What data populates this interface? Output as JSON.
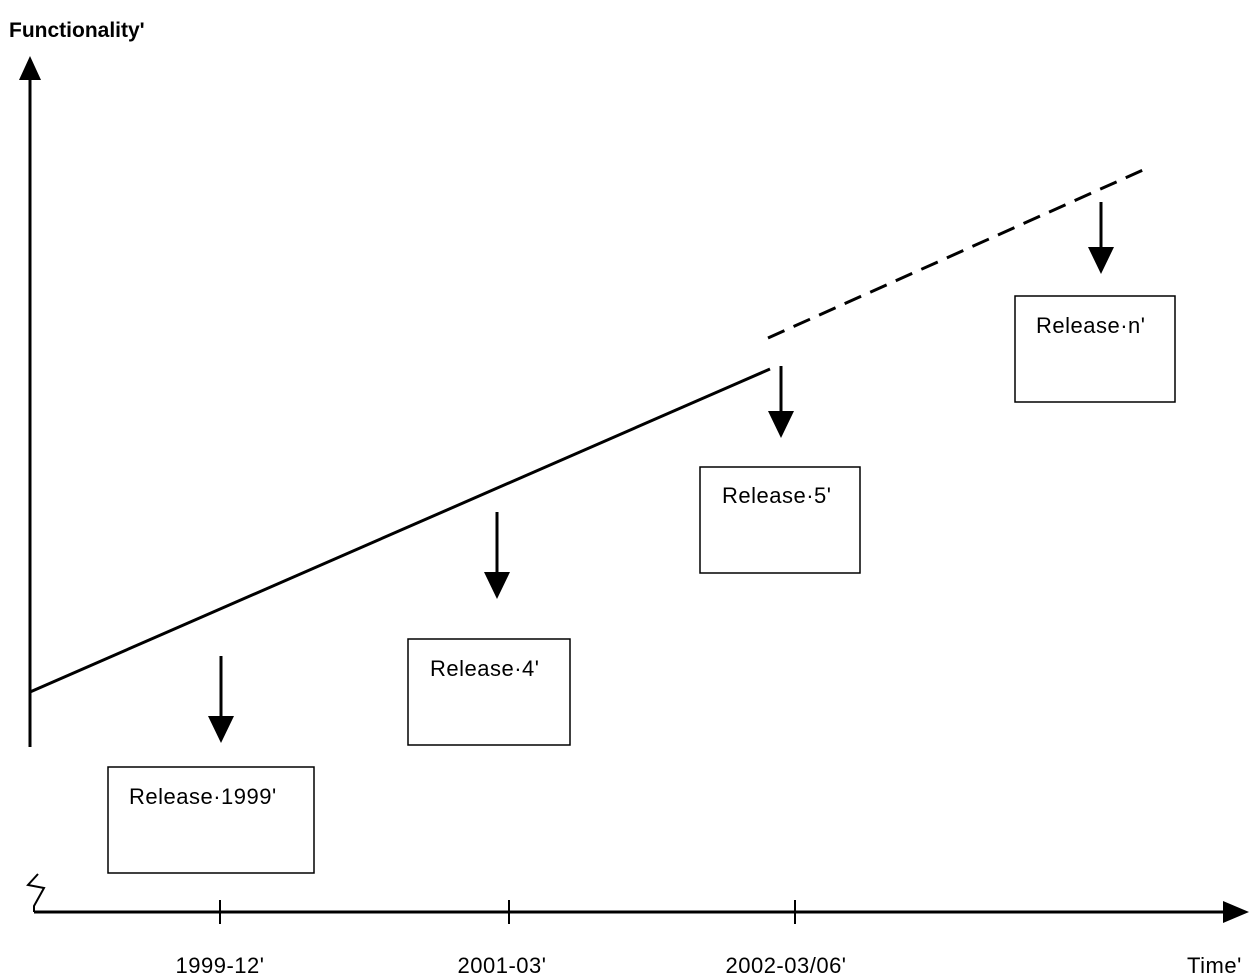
{
  "y_axis_label": "Functionality'",
  "x_axis_label": "Time'",
  "ticks": [
    {
      "label": "1999-12'"
    },
    {
      "label": "2001-03'"
    },
    {
      "label": "2002-03/06'"
    }
  ],
  "releases": [
    {
      "label": "Release·1999'"
    },
    {
      "label": "Release·4'"
    },
    {
      "label": "Release·5'"
    },
    {
      "label": "Release·n'"
    }
  ],
  "colors": {
    "line": "#000000",
    "background": "#ffffff"
  }
}
